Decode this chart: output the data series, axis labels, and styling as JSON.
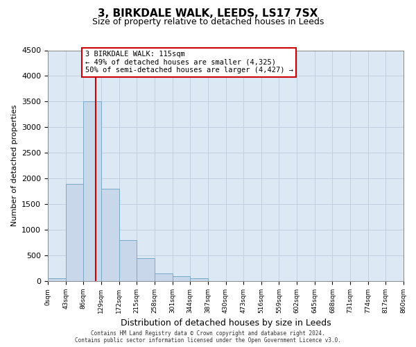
{
  "title1": "3, BIRKDALE WALK, LEEDS, LS17 7SX",
  "title2": "Size of property relative to detached houses in Leeds",
  "xlabel": "Distribution of detached houses by size in Leeds",
  "ylabel": "Number of detached properties",
  "bin_edges": [
    0,
    43,
    86,
    129,
    172,
    215,
    258,
    301,
    344,
    387,
    430,
    473,
    516,
    559,
    602,
    645,
    688,
    731,
    774,
    817,
    860
  ],
  "bar_values": [
    50,
    1900,
    3500,
    1800,
    800,
    450,
    150,
    90,
    60,
    0,
    0,
    0,
    0,
    0,
    0,
    0,
    0,
    0,
    0,
    0
  ],
  "bar_color": "#c8d8ea",
  "bar_edge_color": "#7aaac8",
  "red_line_x": 115,
  "ylim": [
    0,
    4500
  ],
  "yticks": [
    0,
    500,
    1000,
    1500,
    2000,
    2500,
    3000,
    3500,
    4000,
    4500
  ],
  "annotation_text": "3 BIRKDALE WALK: 115sqm\n← 49% of detached houses are smaller (4,325)\n50% of semi-detached houses are larger (4,427) →",
  "annotation_box_color": "#ffffff",
  "annotation_box_edge": "#cc0000",
  "footer_line1": "Contains HM Land Registry data © Crown copyright and database right 2024.",
  "footer_line2": "Contains public sector information licensed under the Open Government Licence v3.0.",
  "grid_color": "#c0d0e0",
  "background_color": "#dce8f4",
  "fig_bg": "#ffffff"
}
